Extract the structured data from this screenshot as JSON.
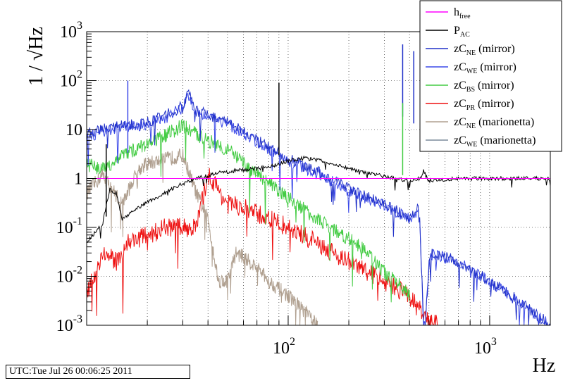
{
  "timestamp": "UTC:Tue Jul 26 00:06:25 2011",
  "chart_data": {
    "type": "line",
    "x_scale": "log",
    "y_scale": "log",
    "xlim": [
      10,
      2000
    ],
    "ylim": [
      0.001,
      1000
    ],
    "xlabel": "Hz",
    "ylabel": "1 / √Hz",
    "grid": true,
    "legend_position": "top-right",
    "x_ticks": [
      {
        "value": 100,
        "base": "10",
        "exp": "2"
      },
      {
        "value": 1000,
        "base": "10",
        "exp": "3"
      }
    ],
    "y_ticks": [
      {
        "value": 1000,
        "base": "10",
        "exp": "3"
      },
      {
        "value": 100,
        "base": "10",
        "exp": "2"
      },
      {
        "value": 10,
        "base": "10",
        "exp": ""
      },
      {
        "value": 1,
        "base": "1",
        "exp": ""
      },
      {
        "value": 0.1,
        "base": "10",
        "exp": "-1"
      },
      {
        "value": 0.01,
        "base": "10",
        "exp": "-2"
      },
      {
        "value": 0.001,
        "base": "10",
        "exp": "-3"
      }
    ],
    "series": [
      {
        "name": "h",
        "sub": "free",
        "suffix": "",
        "color": "#ff00ff",
        "noise": 0,
        "x": [
          10,
          2000
        ],
        "y": [
          1.0,
          1.0
        ]
      },
      {
        "name": "P",
        "sub": "AC",
        "suffix": "",
        "color": "#000000",
        "noise": 0.04,
        "x": [
          10,
          12,
          13,
          14,
          15,
          18,
          22,
          28,
          35,
          45,
          60,
          80,
          100,
          120,
          140,
          180,
          250,
          300,
          400,
          450,
          470,
          500,
          700,
          1000,
          2000
        ],
        "y": [
          0.05,
          0.12,
          0.6,
          0.5,
          0.15,
          0.25,
          0.4,
          0.7,
          1.0,
          1.3,
          1.5,
          1.7,
          2.3,
          2.6,
          2.4,
          1.8,
          1.3,
          1.1,
          0.9,
          1.0,
          1.4,
          0.9,
          1.0,
          1.0,
          1.0
        ]
      },
      {
        "name": "zC",
        "sub": "NE",
        "suffix": " (mirror)",
        "color": "#2030c8",
        "noise": 0.12,
        "x": [
          10,
          12,
          15,
          20,
          25,
          30,
          32,
          35,
          40,
          50,
          70,
          100,
          150,
          200,
          300,
          400,
          440,
          450,
          470,
          480,
          500,
          520,
          700,
          1000,
          1500,
          2000
        ],
        "y": [
          8,
          10,
          12,
          14,
          20,
          30,
          55,
          25,
          20,
          14,
          6,
          2.5,
          1.2,
          0.6,
          0.3,
          0.16,
          0.25,
          0.12,
          0.001,
          0.001,
          0.02,
          0.03,
          0.02,
          0.008,
          0.0025,
          0.001
        ]
      },
      {
        "name": "zC",
        "sub": "WE",
        "suffix": " (mirror)",
        "color": "#3a48e8",
        "noise": 0.12,
        "x": [
          10,
          12,
          15,
          20,
          25,
          30,
          32,
          35,
          40,
          50,
          70,
          100,
          150,
          200,
          300,
          400,
          440,
          450,
          470,
          480,
          500,
          520,
          700,
          1000,
          1500,
          2000
        ],
        "y": [
          7,
          9,
          11,
          13,
          18,
          28,
          50,
          23,
          19,
          13,
          5.5,
          2.3,
          1.1,
          0.55,
          0.28,
          0.15,
          0.23,
          0.11,
          0.001,
          0.001,
          0.019,
          0.029,
          0.019,
          0.0078,
          0.0024,
          0.001
        ]
      },
      {
        "name": "zC",
        "sub": "BS",
        "suffix": " (mirror)",
        "color": "#44cc44",
        "noise": 0.15,
        "x": [
          10,
          12,
          15,
          20,
          25,
          30,
          35,
          40,
          50,
          60,
          80,
          100,
          150,
          200,
          250,
          300,
          350,
          380,
          400
        ],
        "y": [
          2,
          1.5,
          3,
          5,
          8,
          12,
          8,
          6,
          4,
          2,
          0.8,
          0.4,
          0.12,
          0.06,
          0.03,
          0.012,
          0.007,
          0.005,
          0.004
        ]
      },
      {
        "name": "zC",
        "sub": "PR",
        "suffix": " (mirror)",
        "color": "#ee1111",
        "noise": 0.2,
        "x": [
          10,
          12,
          14,
          16,
          20,
          25,
          30,
          35,
          40,
          45,
          50,
          60,
          80,
          100,
          150,
          200,
          300,
          400,
          420,
          450,
          500,
          550
        ],
        "y": [
          0.004,
          0.03,
          0.02,
          0.05,
          0.07,
          0.1,
          0.1,
          0.1,
          1.2,
          0.6,
          0.3,
          0.25,
          0.15,
          0.1,
          0.04,
          0.02,
          0.008,
          0.004,
          0.003,
          0.002,
          0.0012,
          0.001
        ]
      },
      {
        "name": "zC",
        "sub": "NE",
        "suffix": " (marionetta)",
        "color": "#b0a090",
        "noise": 0.15,
        "x": [
          10,
          12,
          15,
          18,
          20,
          25,
          30,
          35,
          40,
          45,
          50,
          55,
          60,
          70,
          80,
          100,
          120,
          140
        ],
        "y": [
          0.5,
          1.2,
          0.3,
          1.5,
          2,
          2.5,
          3,
          0.5,
          0.15,
          0.008,
          0.008,
          0.03,
          0.025,
          0.015,
          0.008,
          0.004,
          0.002,
          0.001
        ]
      },
      {
        "name": "zC",
        "sub": "WE",
        "suffix": " (marionetta)",
        "color": "#7a8a9a",
        "noise": 0.15,
        "x": [
          10,
          12,
          15,
          18,
          20,
          25,
          30,
          35,
          40,
          45,
          50,
          55,
          60,
          70,
          80,
          100,
          120,
          150
        ],
        "y": [
          0.7,
          1.5,
          0.4,
          2,
          3,
          4,
          4,
          0.8,
          0.2,
          0.01,
          0.01,
          0.05,
          0.04,
          0.02,
          0.01,
          0.006,
          0.003,
          0.001
        ]
      }
    ],
    "spikes": [
      {
        "x": 90,
        "y": 90,
        "color": "#000000"
      },
      {
        "x": 370,
        "y": 550,
        "color": "#2030c8"
      },
      {
        "x": 420,
        "y": 400,
        "color": "#2030c8"
      },
      {
        "x": 370,
        "y": 35,
        "color": "#44cc44"
      },
      {
        "x": 12.5,
        "y": 5,
        "color": "#000000"
      },
      {
        "x": 16,
        "y": 100,
        "color": "#3a48e8"
      }
    ]
  }
}
